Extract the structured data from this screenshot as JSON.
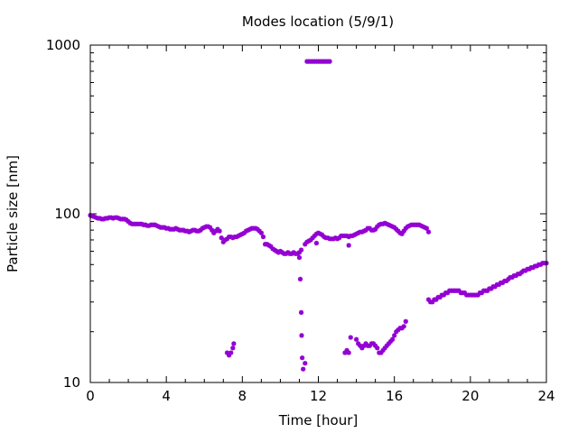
{
  "chart_data": {
    "type": "scatter",
    "title": "Modes location (5/9/1)",
    "xlabel": "Time [hour]",
    "ylabel": "Particle size [nm]",
    "xlim": [
      0,
      24
    ],
    "ylim": [
      10,
      1000
    ],
    "yscale": "log",
    "grid": false,
    "legend": "none",
    "xticks": [
      0,
      4,
      8,
      12,
      16,
      20,
      24
    ],
    "yticks": [
      10,
      100,
      1000
    ],
    "ytick_labels": [
      "10",
      "100",
      "1000"
    ],
    "marker_color": "#9400D3",
    "series": [
      {
        "points": [
          [
            0.0,
            98
          ],
          [
            0.1,
            97
          ],
          [
            0.2,
            96
          ],
          [
            0.3,
            95
          ],
          [
            0.4,
            94
          ],
          [
            0.5,
            94
          ],
          [
            0.6,
            93
          ],
          [
            0.7,
            93
          ],
          [
            0.8,
            94
          ],
          [
            0.9,
            94
          ],
          [
            1.0,
            95
          ],
          [
            1.1,
            95
          ],
          [
            1.2,
            94
          ],
          [
            1.3,
            95
          ],
          [
            1.4,
            95
          ],
          [
            1.5,
            94
          ],
          [
            1.6,
            93
          ],
          [
            1.7,
            93
          ],
          [
            1.8,
            93
          ],
          [
            1.9,
            92
          ],
          [
            2.0,
            90
          ],
          [
            2.1,
            88
          ],
          [
            2.2,
            87
          ],
          [
            2.3,
            87
          ],
          [
            2.4,
            87
          ],
          [
            2.5,
            87
          ],
          [
            2.6,
            87
          ],
          [
            2.7,
            87
          ],
          [
            2.8,
            86
          ],
          [
            2.9,
            86
          ],
          [
            3.0,
            85
          ],
          [
            3.1,
            85
          ],
          [
            3.2,
            86
          ],
          [
            3.3,
            86
          ],
          [
            3.4,
            86
          ],
          [
            3.5,
            85
          ],
          [
            3.6,
            84
          ],
          [
            3.7,
            83
          ],
          [
            3.8,
            83
          ],
          [
            3.9,
            83
          ],
          [
            4.0,
            82
          ],
          [
            4.1,
            82
          ],
          [
            4.2,
            81
          ],
          [
            4.3,
            81
          ],
          [
            4.4,
            81
          ],
          [
            4.5,
            82
          ],
          [
            4.6,
            81
          ],
          [
            4.7,
            80
          ],
          [
            4.8,
            80
          ],
          [
            4.9,
            80
          ],
          [
            5.0,
            79
          ],
          [
            5.1,
            79
          ],
          [
            5.2,
            78
          ],
          [
            5.3,
            79
          ],
          [
            5.4,
            80
          ],
          [
            5.5,
            80
          ],
          [
            5.6,
            79
          ],
          [
            5.7,
            79
          ],
          [
            5.8,
            80
          ],
          [
            5.9,
            82
          ],
          [
            6.0,
            83
          ],
          [
            6.1,
            84
          ],
          [
            6.2,
            84
          ],
          [
            6.3,
            83
          ],
          [
            6.4,
            80
          ],
          [
            6.5,
            77
          ],
          [
            6.6,
            79
          ],
          [
            6.7,
            81
          ],
          [
            6.8,
            79
          ],
          [
            6.9,
            72
          ],
          [
            7.0,
            68
          ],
          [
            7.1,
            70
          ],
          [
            7.2,
            71
          ],
          [
            7.3,
            73
          ],
          [
            7.4,
            73
          ],
          [
            7.5,
            72
          ],
          [
            7.6,
            73
          ],
          [
            7.7,
            73
          ],
          [
            7.8,
            74
          ],
          [
            7.9,
            75
          ],
          [
            8.0,
            76
          ],
          [
            8.1,
            77
          ],
          [
            8.2,
            79
          ],
          [
            8.3,
            80
          ],
          [
            8.4,
            81
          ],
          [
            8.5,
            82
          ],
          [
            8.6,
            82
          ],
          [
            8.7,
            82
          ],
          [
            8.8,
            81
          ],
          [
            8.9,
            79
          ],
          [
            9.0,
            77
          ],
          [
            9.1,
            73
          ],
          [
            9.2,
            66
          ],
          [
            9.3,
            66
          ],
          [
            9.4,
            65
          ],
          [
            9.5,
            64
          ],
          [
            9.6,
            62
          ],
          [
            9.7,
            61
          ],
          [
            9.8,
            60
          ],
          [
            9.9,
            59
          ],
          [
            10.0,
            60
          ],
          [
            10.1,
            59
          ],
          [
            10.2,
            58
          ],
          [
            10.3,
            58
          ],
          [
            10.4,
            59
          ],
          [
            10.5,
            58
          ],
          [
            10.6,
            58
          ],
          [
            10.7,
            59
          ],
          [
            10.8,
            58
          ],
          [
            10.9,
            58
          ],
          [
            11.0,
            59
          ],
          [
            11.1,
            61
          ],
          [
            11.3,
            66
          ],
          [
            11.4,
            68
          ],
          [
            11.5,
            69
          ],
          [
            11.6,
            70
          ],
          [
            11.7,
            72
          ],
          [
            11.8,
            74
          ],
          [
            11.9,
            76
          ],
          [
            12.0,
            77
          ],
          [
            12.1,
            76
          ],
          [
            12.2,
            75
          ],
          [
            12.3,
            73
          ],
          [
            12.4,
            72
          ],
          [
            12.5,
            72
          ],
          [
            12.6,
            71
          ],
          [
            12.7,
            71
          ],
          [
            12.8,
            71
          ],
          [
            12.9,
            72
          ],
          [
            13.0,
            71
          ],
          [
            13.1,
            72
          ],
          [
            13.2,
            74
          ],
          [
            13.3,
            74
          ],
          [
            13.4,
            74
          ],
          [
            13.5,
            74
          ],
          [
            13.6,
            73
          ],
          [
            13.7,
            74
          ],
          [
            13.8,
            74
          ],
          [
            13.9,
            75
          ],
          [
            14.0,
            76
          ],
          [
            14.1,
            77
          ],
          [
            14.2,
            78
          ],
          [
            14.3,
            78
          ],
          [
            14.4,
            79
          ],
          [
            14.5,
            80
          ],
          [
            14.6,
            82
          ],
          [
            14.7,
            82
          ],
          [
            14.8,
            80
          ],
          [
            14.9,
            80
          ],
          [
            15.0,
            81
          ],
          [
            15.1,
            84
          ],
          [
            15.2,
            86
          ],
          [
            15.3,
            87
          ],
          [
            15.4,
            87
          ],
          [
            15.5,
            88
          ],
          [
            15.6,
            87
          ],
          [
            15.7,
            86
          ],
          [
            15.8,
            85
          ],
          [
            15.9,
            84
          ],
          [
            16.0,
            83
          ],
          [
            16.1,
            81
          ],
          [
            16.2,
            79
          ],
          [
            16.3,
            77
          ],
          [
            16.4,
            76
          ],
          [
            16.5,
            79
          ],
          [
            16.6,
            82
          ],
          [
            16.7,
            84
          ],
          [
            16.8,
            85
          ],
          [
            16.9,
            86
          ],
          [
            17.0,
            86
          ],
          [
            17.1,
            86
          ],
          [
            17.2,
            86
          ],
          [
            17.3,
            86
          ],
          [
            17.4,
            85
          ],
          [
            17.5,
            84
          ],
          [
            17.6,
            83
          ],
          [
            17.7,
            82
          ],
          [
            17.8,
            78
          ],
          [
            17.8,
            31
          ],
          [
            17.9,
            30
          ],
          [
            18.0,
            30
          ],
          [
            18.1,
            31
          ],
          [
            18.2,
            31
          ],
          [
            18.3,
            32
          ],
          [
            18.4,
            32
          ],
          [
            18.5,
            33
          ],
          [
            18.6,
            33
          ],
          [
            18.7,
            34
          ],
          [
            18.8,
            34
          ],
          [
            18.9,
            35
          ],
          [
            19.0,
            35
          ],
          [
            19.1,
            35
          ],
          [
            19.2,
            35
          ],
          [
            19.3,
            35
          ],
          [
            19.4,
            35
          ],
          [
            19.5,
            34
          ],
          [
            19.6,
            34
          ],
          [
            19.7,
            34
          ],
          [
            19.8,
            33
          ],
          [
            19.9,
            33
          ],
          [
            20.0,
            33
          ],
          [
            20.1,
            33
          ],
          [
            20.2,
            33
          ],
          [
            20.3,
            33
          ],
          [
            20.4,
            33
          ],
          [
            20.5,
            34
          ],
          [
            20.6,
            34
          ],
          [
            20.7,
            35
          ],
          [
            20.8,
            35
          ],
          [
            20.9,
            35
          ],
          [
            21.0,
            36
          ],
          [
            21.1,
            36
          ],
          [
            21.2,
            37
          ],
          [
            21.3,
            37
          ],
          [
            21.4,
            38
          ],
          [
            21.5,
            38
          ],
          [
            21.6,
            39
          ],
          [
            21.7,
            39
          ],
          [
            21.8,
            40
          ],
          [
            21.9,
            40
          ],
          [
            22.0,
            41
          ],
          [
            22.1,
            42
          ],
          [
            22.2,
            42
          ],
          [
            22.3,
            43
          ],
          [
            22.4,
            43
          ],
          [
            22.5,
            44
          ],
          [
            22.6,
            44
          ],
          [
            22.7,
            45
          ],
          [
            22.8,
            46
          ],
          [
            22.9,
            46
          ],
          [
            23.0,
            47
          ],
          [
            23.1,
            47
          ],
          [
            23.2,
            48
          ],
          [
            23.3,
            48
          ],
          [
            23.4,
            49
          ],
          [
            23.5,
            49
          ],
          [
            23.6,
            50
          ],
          [
            23.7,
            50
          ],
          [
            23.8,
            51
          ],
          [
            23.9,
            51
          ],
          [
            24.0,
            51
          ],
          [
            11.9,
            67
          ],
          [
            13.6,
            65
          ],
          [
            7.2,
            15
          ],
          [
            7.3,
            14.5
          ],
          [
            7.4,
            15
          ],
          [
            7.5,
            16
          ],
          [
            7.55,
            17
          ],
          [
            11.0,
            55
          ],
          [
            11.05,
            41
          ],
          [
            11.1,
            26
          ],
          [
            11.12,
            19
          ],
          [
            11.15,
            14
          ],
          [
            11.2,
            12
          ],
          [
            11.3,
            13
          ],
          [
            11.4,
            800
          ],
          [
            11.5,
            800
          ],
          [
            11.6,
            800
          ],
          [
            11.7,
            800
          ],
          [
            11.8,
            800
          ],
          [
            11.9,
            800
          ],
          [
            12.0,
            800
          ],
          [
            12.1,
            800
          ],
          [
            12.2,
            800
          ],
          [
            12.3,
            800
          ],
          [
            12.4,
            800
          ],
          [
            12.5,
            800
          ],
          [
            12.6,
            800
          ],
          [
            13.4,
            15
          ],
          [
            13.5,
            15.5
          ],
          [
            13.6,
            15
          ],
          [
            13.7,
            18.5
          ],
          [
            14.0,
            18
          ],
          [
            14.1,
            17
          ],
          [
            14.2,
            16.5
          ],
          [
            14.3,
            16
          ],
          [
            14.4,
            16.5
          ],
          [
            14.5,
            17
          ],
          [
            14.6,
            16.5
          ],
          [
            14.7,
            16.5
          ],
          [
            14.8,
            17
          ],
          [
            14.9,
            17
          ],
          [
            15.0,
            16.5
          ],
          [
            15.1,
            16
          ],
          [
            15.2,
            15
          ],
          [
            15.3,
            15
          ],
          [
            15.4,
            15.5
          ],
          [
            15.5,
            16
          ],
          [
            15.6,
            16.5
          ],
          [
            15.7,
            17
          ],
          [
            15.8,
            17.5
          ],
          [
            15.9,
            18
          ],
          [
            16.0,
            19
          ],
          [
            16.1,
            20
          ],
          [
            16.2,
            20.5
          ],
          [
            16.3,
            21
          ],
          [
            16.4,
            21
          ],
          [
            16.5,
            21.5
          ],
          [
            16.6,
            23
          ]
        ]
      }
    ]
  }
}
